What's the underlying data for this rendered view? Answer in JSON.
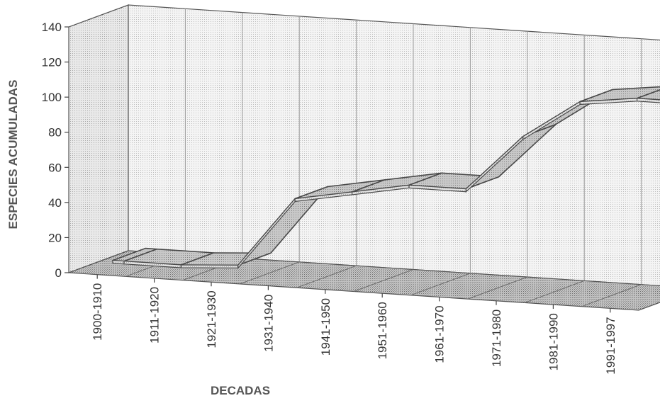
{
  "chart_data": {
    "type": "area",
    "style": "3d-ribbon",
    "categories": [
      "1900-1910",
      "1911-1920",
      "1921-1930",
      "1931-1940",
      "1941-1950",
      "1951-1960",
      "1961-1970",
      "1971-1980",
      "1981-1990",
      "1991-1997"
    ],
    "series": [
      {
        "values": [
          2,
          2,
          4,
          44,
          50,
          56,
          56,
          88,
          110,
          114
        ]
      }
    ],
    "xlabel": "DECADAS",
    "ylabel": "ESPECIES ACUMULADAS",
    "yticks": [
      0,
      20,
      40,
      60,
      80,
      100,
      120,
      140
    ],
    "ylim": [
      0,
      140
    ],
    "grid": true,
    "legend": "none",
    "colors": {
      "wall": "#eeeeee",
      "floor": "#bfbfbf",
      "ribbon_top": "#c8c8c8",
      "ribbon_front": "#d9d9d9",
      "edge": "#4a4a4a"
    }
  }
}
